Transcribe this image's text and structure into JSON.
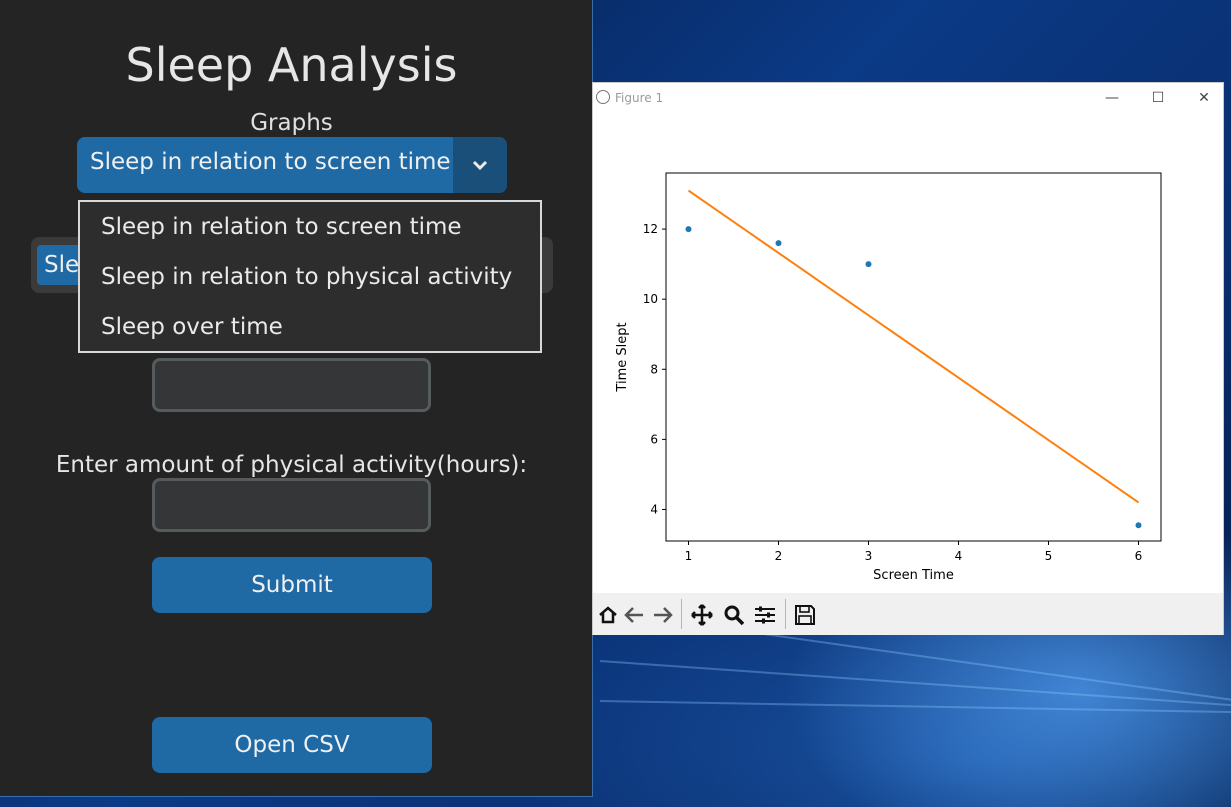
{
  "app": {
    "title": "Sleep Analysis",
    "graphs_label": "Graphs",
    "graph_select": {
      "selected": "Sleep in relation to screen time"
    },
    "graph_options": [
      "Sleep in relation to screen time",
      "Sleep in relation to physical activity",
      "Sleep over time"
    ],
    "hidden_select_partial": "Sle",
    "physical_activity_label": "Enter amount of physical activity(hours):",
    "submit_label": "Submit",
    "open_csv_label": "Open CSV"
  },
  "figure": {
    "window_title": "Figure 1",
    "toolbar_icons": [
      "home-icon",
      "back-arrow-icon",
      "forward-arrow-icon",
      "pan-icon",
      "zoom-icon",
      "configure-subplots-icon",
      "save-icon"
    ]
  },
  "chart_data": {
    "type": "scatter",
    "xlabel": "Screen Time",
    "ylabel": "Time Slept",
    "xlim": [
      0.75,
      6.25
    ],
    "ylim": [
      3.1,
      13.6
    ],
    "xticks": [
      1,
      2,
      3,
      4,
      5,
      6
    ],
    "yticks": [
      4,
      6,
      8,
      10,
      12
    ],
    "grid": false,
    "series": [
      {
        "kind": "scatter",
        "color": "#1f77b4",
        "x": [
          1,
          2,
          3,
          6
        ],
        "y": [
          12.0,
          11.6,
          11.0,
          3.55
        ]
      },
      {
        "kind": "line",
        "color": "#ff7f0e",
        "x": [
          1,
          6
        ],
        "y": [
          13.1,
          4.2
        ]
      }
    ]
  },
  "colors": {
    "app_bg": "#242424",
    "accent": "#1f6aa5",
    "accent_dark": "#1a4f7a"
  }
}
